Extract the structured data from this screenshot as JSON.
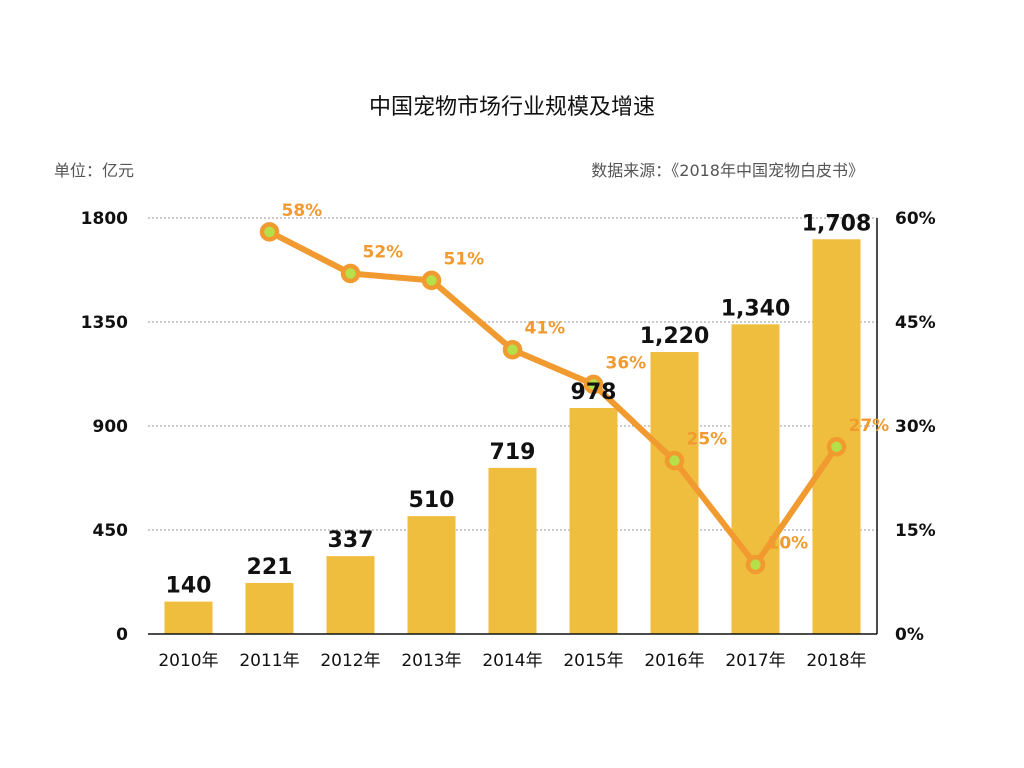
{
  "chart_data": {
    "type": "bar",
    "title": "中国宠物市场行业规模及增速",
    "unit_label": "单位：亿元",
    "source_label": "数据来源：《2018年中国宠物白皮书》",
    "categories": [
      "2010年",
      "2011年",
      "2012年",
      "2013年",
      "2014年",
      "2015年",
      "2016年",
      "2017年",
      "2018年"
    ],
    "series": [
      {
        "type": "bar",
        "axis": "left",
        "values": [
          140,
          221,
          337,
          510,
          719,
          978,
          1220,
          1340,
          1708
        ],
        "labels": [
          "140",
          "221",
          "337",
          "510",
          "719",
          "978",
          "1,220",
          "1,340",
          "1,708"
        ]
      },
      {
        "type": "line",
        "axis": "right",
        "values": [
          null,
          58,
          52,
          51,
          41,
          36,
          25,
          10,
          27
        ],
        "labels": [
          null,
          "58%",
          "52%",
          "51%",
          "41%",
          "36%",
          "25%",
          "10%",
          "27%"
        ]
      }
    ],
    "y_left": {
      "min": 0,
      "max": 1800,
      "ticks": [
        "0",
        "450",
        "900",
        "1350",
        "1800"
      ]
    },
    "y_right": {
      "min": 0,
      "max": 60,
      "ticks": [
        "0%",
        "15%",
        "30%",
        "45%",
        "60%"
      ]
    },
    "grid": true,
    "colors": {
      "bar": "#F0BE3E",
      "line": "#F09A30",
      "marker_fill": "#B5E04A",
      "rate_label": "#F09A30"
    }
  }
}
